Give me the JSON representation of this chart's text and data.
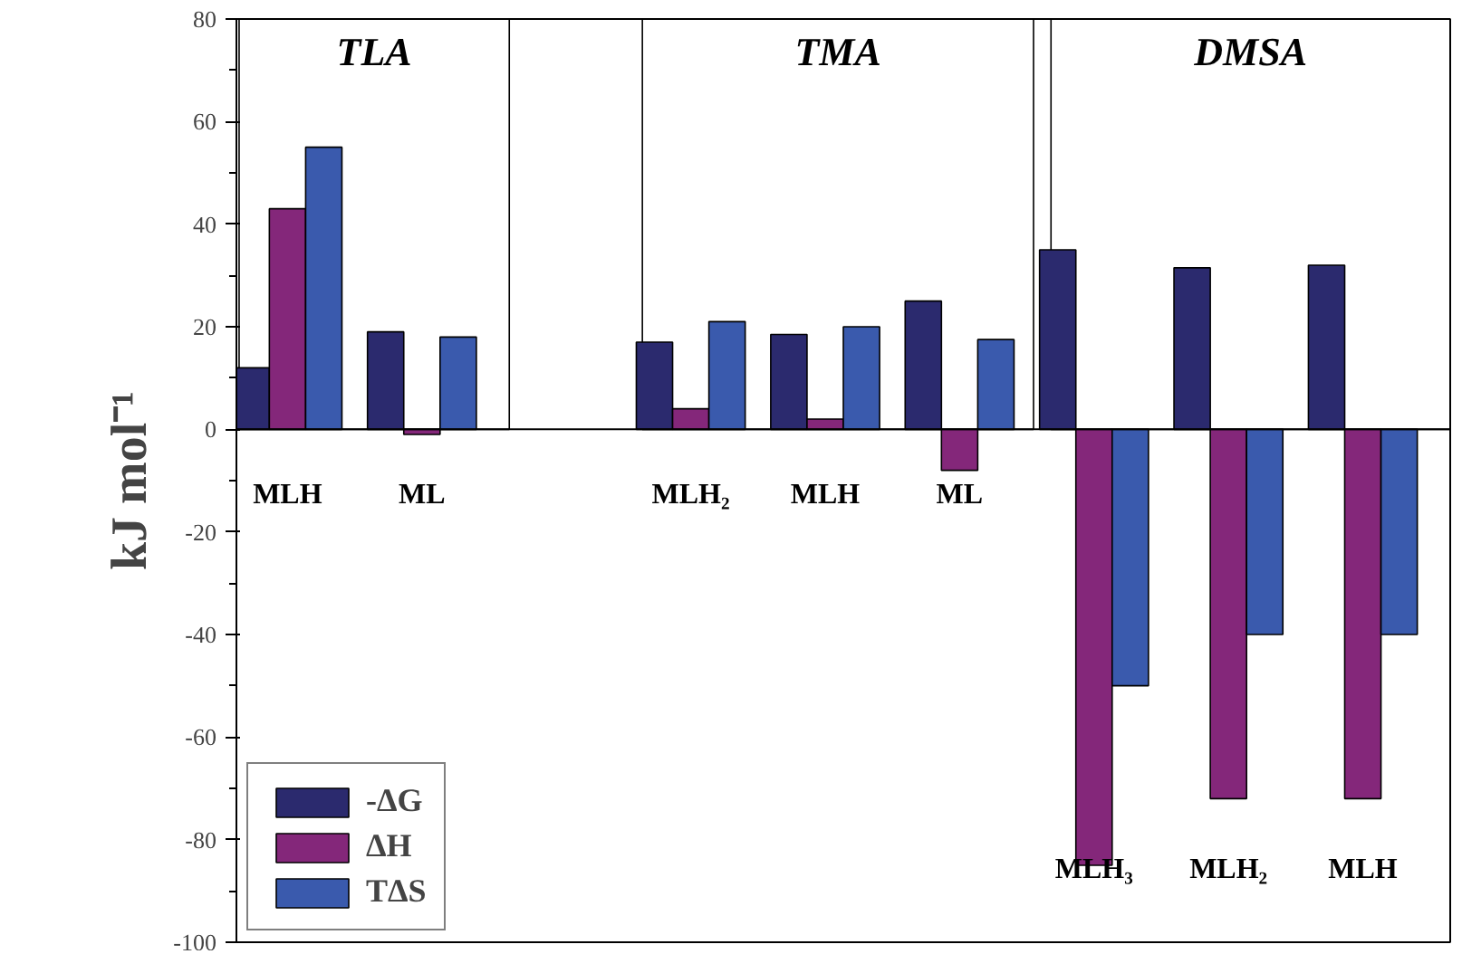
{
  "chart_data": {
    "type": "bar",
    "ylabel": "kJ mol⁻¹",
    "categories": [
      "MLH",
      "ML",
      null,
      "MLH₂",
      "MLH",
      "ML",
      "MLH₃",
      "MLH₂",
      "MLH"
    ],
    "series": [
      {
        "name": "-ΔG",
        "color": "#2b2a6e",
        "values": [
          12,
          19,
          null,
          17,
          18.5,
          25,
          35,
          31.5,
          32
        ]
      },
      {
        "name": "ΔH",
        "color": "#84277a",
        "values": [
          43,
          -1,
          null,
          4,
          2,
          -8,
          -85,
          -72,
          -72
        ]
      },
      {
        "name": "TΔS",
        "color": "#3a5aad",
        "values": [
          55,
          18,
          null,
          21,
          20,
          17.5,
          -50,
          -40,
          -40
        ]
      }
    ],
    "ylim": [
      -100,
      80
    ],
    "yticks": [
      -100,
      -80,
      -60,
      -40,
      -20,
      0,
      20,
      40,
      60,
      80
    ],
    "annotations": [
      "TLA",
      "TMA",
      "DMSA"
    ],
    "grid": false,
    "legend": "bottom left"
  }
}
